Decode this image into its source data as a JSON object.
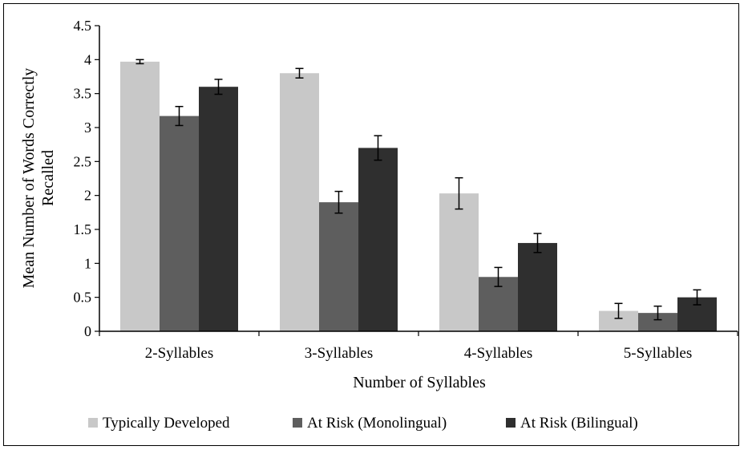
{
  "chart_data": {
    "type": "bar",
    "title": "",
    "xlabel": "Number of Syllables",
    "ylabel_lines": [
      "Mean Number of Words Correctly",
      "Recalled"
    ],
    "categories": [
      "2-Syllables",
      "3-Syllables",
      "4-Syllables",
      "5-Syllables"
    ],
    "ylim": [
      0,
      4.5
    ],
    "yticks": [
      "0",
      "0.5",
      "1",
      "1.5",
      "2",
      "2.5",
      "3",
      "3.5",
      "4",
      "4.5"
    ],
    "grid": false,
    "legend_position": "bottom",
    "series": [
      {
        "name": "Typically Developed",
        "color": "#c8c8c8",
        "values": [
          3.97,
          3.8,
          2.03,
          0.3
        ],
        "errors": [
          0.03,
          0.07,
          0.23,
          0.11
        ]
      },
      {
        "name": "At Risk (Monolingual)",
        "color": "#5e5e5e",
        "values": [
          3.17,
          1.9,
          0.8,
          0.27
        ],
        "errors": [
          0.14,
          0.16,
          0.14,
          0.1
        ]
      },
      {
        "name": "At Risk (Bilingual)",
        "color": "#2f2f2f",
        "values": [
          3.6,
          2.7,
          1.3,
          0.5
        ],
        "errors": [
          0.11,
          0.18,
          0.14,
          0.11
        ]
      }
    ]
  }
}
